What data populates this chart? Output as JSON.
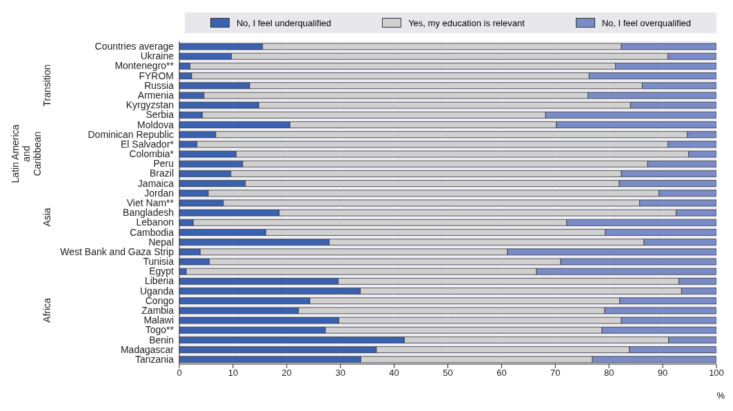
{
  "chart_data": {
    "type": "bar",
    "orientation": "horizontal",
    "stacked": true,
    "categories": [
      "Countries average",
      "Ukraine",
      "Montenegro**",
      "FYROM",
      "Russia",
      "Armenia",
      "Kyrgyzstan",
      "Serbia",
      "Moldova",
      "Dominican Republic",
      "El Salvador*",
      "Colombia*",
      "Peru",
      "Brazil",
      "Jamaica",
      "Jordan",
      "Viet Nam**",
      "Bangladesh",
      "Lebanon",
      "Cambodia",
      "Nepal",
      "West Bank and Gaza Strip",
      "Tunisia",
      "Egypt",
      "Liberia",
      "Uganda",
      "Congo",
      "Zambia",
      "Malawi",
      "Togo**",
      "Benin",
      "Madagascar",
      "Tanzania"
    ],
    "series": [
      {
        "name": "No, I feel underqualified",
        "color": "#3a62b0",
        "values": [
          15.5,
          9.7,
          2.0,
          2.3,
          13.1,
          4.6,
          14.8,
          4.3,
          20.6,
          6.8,
          3.3,
          10.6,
          11.8,
          9.6,
          12.3,
          5.4,
          8.2,
          18.6,
          2.6,
          16.1,
          27.9,
          3.9,
          5.6,
          1.3,
          29.6,
          33.7,
          24.3,
          22.2,
          29.7,
          27.2,
          41.9,
          36.7,
          33.8
        ]
      },
      {
        "name": "Yes, my education is relevant",
        "color": "#d0d0d0",
        "values": [
          66.8,
          81.3,
          79.2,
          74.0,
          73.1,
          71.5,
          69.2,
          63.9,
          49.6,
          87.8,
          87.7,
          84.2,
          75.4,
          72.7,
          69.6,
          83.9,
          77.5,
          73.9,
          69.5,
          63.2,
          58.6,
          57.2,
          65.4,
          65.2,
          63.4,
          59.8,
          57.7,
          57.0,
          52.6,
          51.5,
          49.2,
          47.1,
          43.1
        ]
      },
      {
        "name": "No, I feel overqualified",
        "color": "#7a8cc8",
        "values": [
          17.7,
          9.0,
          18.8,
          23.7,
          13.8,
          23.9,
          16.0,
          31.8,
          29.8,
          5.4,
          9.0,
          5.2,
          12.8,
          17.7,
          18.1,
          10.7,
          14.3,
          7.5,
          27.9,
          20.7,
          13.5,
          38.9,
          29.0,
          33.5,
          7.0,
          6.5,
          18.0,
          20.8,
          17.7,
          21.3,
          8.9,
          16.2,
          23.1
        ]
      }
    ],
    "xlim": [
      0,
      100
    ],
    "xticks": [
      0,
      10,
      20,
      30,
      40,
      50,
      60,
      70,
      80,
      90,
      100
    ],
    "xlabel": "%",
    "annotations": [
      "Transition",
      "Latin America\nand\nCaribbean",
      "Asia",
      "Africa"
    ],
    "grid": "x",
    "legend": "top"
  }
}
